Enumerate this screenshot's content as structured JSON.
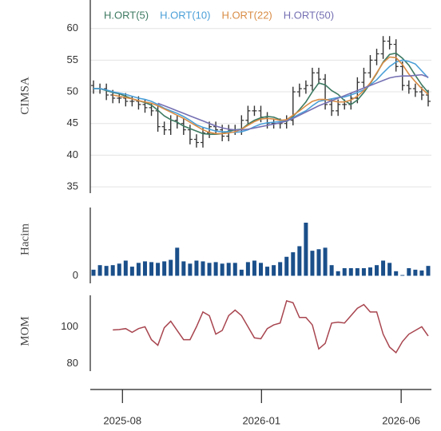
{
  "chart_data": [
    {
      "type": "ohlc",
      "ylabel": "CIMSA",
      "color": "#333333",
      "grid": true,
      "legend": "top-left",
      "ylim": [
        34,
        64.5
      ],
      "yticks": [
        35,
        40,
        45,
        50,
        55,
        60
      ],
      "x": [
        0,
        1,
        2,
        3,
        4,
        5,
        6,
        7,
        8,
        9,
        10,
        11,
        12,
        13,
        14,
        15,
        16,
        17,
        18,
        19,
        20,
        21,
        22,
        23,
        24,
        25,
        26,
        27,
        28,
        29,
        30,
        31,
        32,
        33,
        34,
        35,
        36,
        37,
        38,
        39,
        40,
        41,
        42,
        43,
        44,
        45,
        46,
        47,
        48,
        49,
        50,
        51,
        52
      ],
      "open": [
        51,
        50.5,
        50.5,
        49.5,
        49,
        49,
        48.5,
        48.5,
        48,
        47.5,
        47,
        44.5,
        44,
        45.5,
        45,
        44,
        42.5,
        42,
        43.5,
        44.5,
        44,
        43,
        44,
        44,
        45.5,
        47,
        47,
        46,
        45,
        45,
        45,
        45.5,
        50,
        50.5,
        51,
        53,
        52,
        48,
        47,
        48,
        48,
        49,
        51.5,
        53,
        55,
        56,
        58,
        57.5,
        54,
        51,
        50.5,
        50,
        49.5
      ],
      "high": [
        51.8,
        51.3,
        51.3,
        50.3,
        49.8,
        49.8,
        49.3,
        49.3,
        48.8,
        48.3,
        47.8,
        45.3,
        46.3,
        46.3,
        45.8,
        44.8,
        43.3,
        44.3,
        45.3,
        45.3,
        44.8,
        44.8,
        44.8,
        46.3,
        47.8,
        47.8,
        47.8,
        46.8,
        45.8,
        45.8,
        46.3,
        50.8,
        51.3,
        51.8,
        53.8,
        53.8,
        52.8,
        48.8,
        48.8,
        48.8,
        49.8,
        52.3,
        53.8,
        55.8,
        56.8,
        58.8,
        58.8,
        58.3,
        54.8,
        51.8,
        51.3,
        50.8,
        50.3
      ],
      "low": [
        49.7,
        49.7,
        48.7,
        48.2,
        48.2,
        47.7,
        47.7,
        47.2,
        46.7,
        46.2,
        43.7,
        43.2,
        43.2,
        44.2,
        43.2,
        41.7,
        41.2,
        41.2,
        42.7,
        43.2,
        42.2,
        42.2,
        43.2,
        43.2,
        44.7,
        46.2,
        45.2,
        44.2,
        44.2,
        44.2,
        44.2,
        44.7,
        49.2,
        49.7,
        50.2,
        51.2,
        47.2,
        46.2,
        46.2,
        47.2,
        47.2,
        48.2,
        50.7,
        52.2,
        54.2,
        55.2,
        56.7,
        53.2,
        50.2,
        49.7,
        49.2,
        48.7,
        47.7
      ],
      "close": [
        50.5,
        50.5,
        49.5,
        49,
        49,
        48.5,
        48.5,
        48,
        47.5,
        47,
        44.5,
        44,
        45.5,
        45,
        44,
        42.5,
        42,
        43.5,
        44.5,
        44,
        43,
        44,
        44,
        45.5,
        47,
        47,
        46,
        45,
        45,
        45,
        45.5,
        50,
        50.5,
        51,
        53,
        52,
        48,
        47,
        48,
        48,
        49,
        51.5,
        53,
        55,
        56,
        58,
        57.5,
        54,
        51,
        50.5,
        50,
        49.5,
        48.5
      ],
      "series": [
        {
          "name": "H.ORT(5)",
          "color": "#3d7a62",
          "values": [
            50.5,
            50.5,
            50.2,
            49.9,
            49.7,
            49.3,
            48.9,
            48.6,
            48.3,
            47.9,
            47.1,
            46.2,
            45.6,
            45.2,
            44.6,
            44.2,
            43.8,
            43.4,
            43.3,
            43.3,
            43.4,
            43.8,
            44,
            44.1,
            44.9,
            45.5,
            45.9,
            46.1,
            46,
            45.6,
            45.3,
            46.1,
            47.2,
            48.4,
            50,
            51.4,
            51.1,
            50.2,
            49.6,
            48.6,
            48,
            48.7,
            49.9,
            51.3,
            52.9,
            54.7,
            55.9,
            56.1,
            55.3,
            54.2,
            52.6,
            51.1,
            49.9
          ]
        },
        {
          "name": "H.ORT(10)",
          "color": "#4a9fd8",
          "values": [
            50.5,
            50.5,
            50.3,
            50,
            49.8,
            49.6,
            49.3,
            49,
            48.8,
            48.5,
            48,
            47.4,
            47,
            46.6,
            46.1,
            45.5,
            44.8,
            44.4,
            44.1,
            43.8,
            43.7,
            43.7,
            43.6,
            43.7,
            44,
            44.5,
            44.9,
            45.1,
            45.2,
            45.3,
            45.5,
            45.9,
            46.5,
            47,
            47.8,
            48.5,
            48.7,
            48.9,
            49.1,
            49.2,
            49.5,
            49.9,
            50.3,
            51.1,
            51.9,
            53,
            54,
            54.7,
            55,
            54.8,
            54.4,
            53.3,
            52.2
          ]
        },
        {
          "name": "H.ORT(22)",
          "color": "#d98c45",
          "values": [
            null,
            null,
            null,
            49.5,
            49.3,
            49.1,
            48.9,
            48.6,
            48.4,
            48.2,
            47.8,
            47.3,
            46.8,
            46.3,
            45.8,
            45.2,
            44.6,
            44,
            43.6,
            43.4,
            43.4,
            43.5,
            43.7,
            44.1,
            44.7,
            45.3,
            45.7,
            45.8,
            45.7,
            45.5,
            45.6,
            46.3,
            47,
            47.8,
            48.5,
            48.8,
            48.8,
            48.6,
            48.4,
            48.4,
            48.7,
            49.3,
            50.2,
            51.4,
            53,
            54.6,
            55.5,
            55.4,
            54.3,
            52.8,
            51.6,
            50.5,
            49.6
          ]
        },
        {
          "name": "H.ORT(50)",
          "color": "#7570b3",
          "values": [
            null,
            null,
            null,
            null,
            null,
            null,
            null,
            null,
            null,
            null,
            48.2,
            47.8,
            47.4,
            47,
            46.6,
            46.2,
            45.8,
            45.4,
            45,
            44.6,
            44.3,
            44.1,
            44,
            44,
            44.1,
            44.3,
            44.5,
            44.7,
            44.9,
            45.1,
            45.4,
            45.8,
            46.3,
            46.8,
            47.3,
            47.8,
            48.2,
            48.6,
            49,
            49.4,
            49.8,
            50.2,
            50.6,
            51,
            51.4,
            51.8,
            52.2,
            52.4,
            52.5,
            52.5,
            52.6,
            52.7,
            52.3
          ]
        }
      ]
    },
    {
      "type": "bar",
      "ylabel": "Hacim",
      "color": "#1a4f8a",
      "ylim": [
        -10,
        90
      ],
      "yticks": [
        0
      ],
      "values": [
        8,
        14,
        13,
        14,
        16,
        20,
        12,
        17,
        19,
        18,
        17,
        19,
        21,
        37,
        19,
        16,
        20,
        19,
        17,
        18,
        16,
        17,
        17,
        8,
        18,
        20,
        17,
        12,
        14,
        18,
        25,
        31,
        39,
        70,
        33,
        35,
        37,
        14,
        6,
        10,
        10,
        10,
        10,
        11,
        14,
        20,
        17,
        6,
        1,
        10,
        8,
        7,
        13
      ]
    },
    {
      "type": "line",
      "ylabel": "MOM",
      "color": "#a8454f",
      "ylim": [
        76,
        117
      ],
      "yticks": [
        80,
        100
      ],
      "values": [
        null,
        null,
        null,
        98.3,
        98.5,
        99,
        97,
        99,
        100,
        93,
        90,
        99.5,
        103,
        98,
        93,
        93,
        100,
        108,
        106,
        96,
        98,
        106,
        109,
        106,
        100,
        94,
        93.5,
        99,
        101,
        102,
        114,
        113,
        105,
        105,
        101,
        88,
        91,
        102,
        102.5,
        102,
        106,
        110,
        112,
        108,
        108,
        96,
        89,
        86,
        92,
        96,
        98,
        100,
        95
      ],
      "xlim": [
        -0.5,
        52.5
      ],
      "xticks": [
        {
          "value": 4.5,
          "label": "2025-08"
        },
        {
          "value": 26.1,
          "label": "2026-01"
        },
        {
          "value": 47.8,
          "label": "2026-06"
        }
      ]
    }
  ]
}
